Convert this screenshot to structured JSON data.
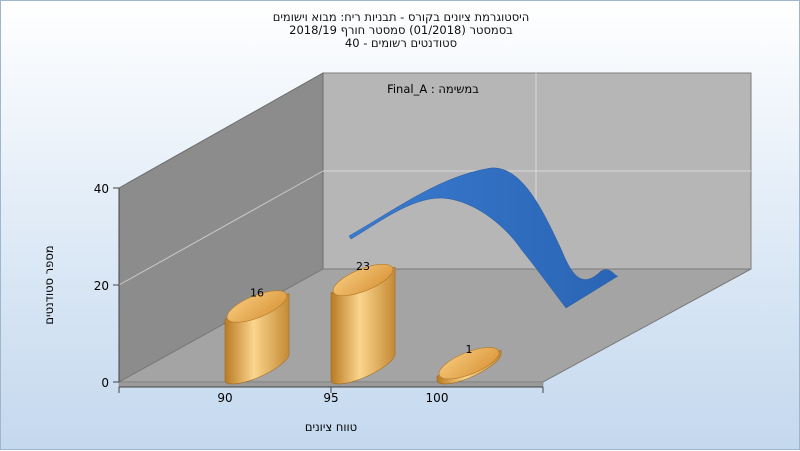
{
  "chart_data": {
    "type": "bar",
    "title_lines": [
      "היסטוגרמת ציונים בקורס - תבניות ריח: מבוא וישומים",
      "בסמסטר  (01/2018)  סמסטר חורף 2018/19",
      "סטודנטים רשומים - 40"
    ],
    "annotation": "במשימה : Final_A",
    "xlabel": "טווח ציונים",
    "ylabel": "מספר סטודנטים",
    "x_ticks": [
      "90",
      "95",
      "100"
    ],
    "y_ticks": [
      "0",
      "20",
      "40"
    ],
    "ylim": [
      0,
      40
    ],
    "bars": [
      {
        "x": 90,
        "value": 16,
        "label": "16"
      },
      {
        "x": 95,
        "value": 23,
        "label": "23"
      },
      {
        "x": 100,
        "value": 1,
        "label": "1"
      }
    ],
    "curve_shape": "bell",
    "grid": true,
    "style": "3d"
  },
  "colors": {
    "bar_light": "#fbd58d",
    "bar_mid": "#e9a84a",
    "bar_dark": "#b97a24",
    "curve": "#2f6fc0",
    "back_wall": "#b6b6b6",
    "side_wall": "#8e8e8e",
    "floor": "#a3a3a3"
  }
}
